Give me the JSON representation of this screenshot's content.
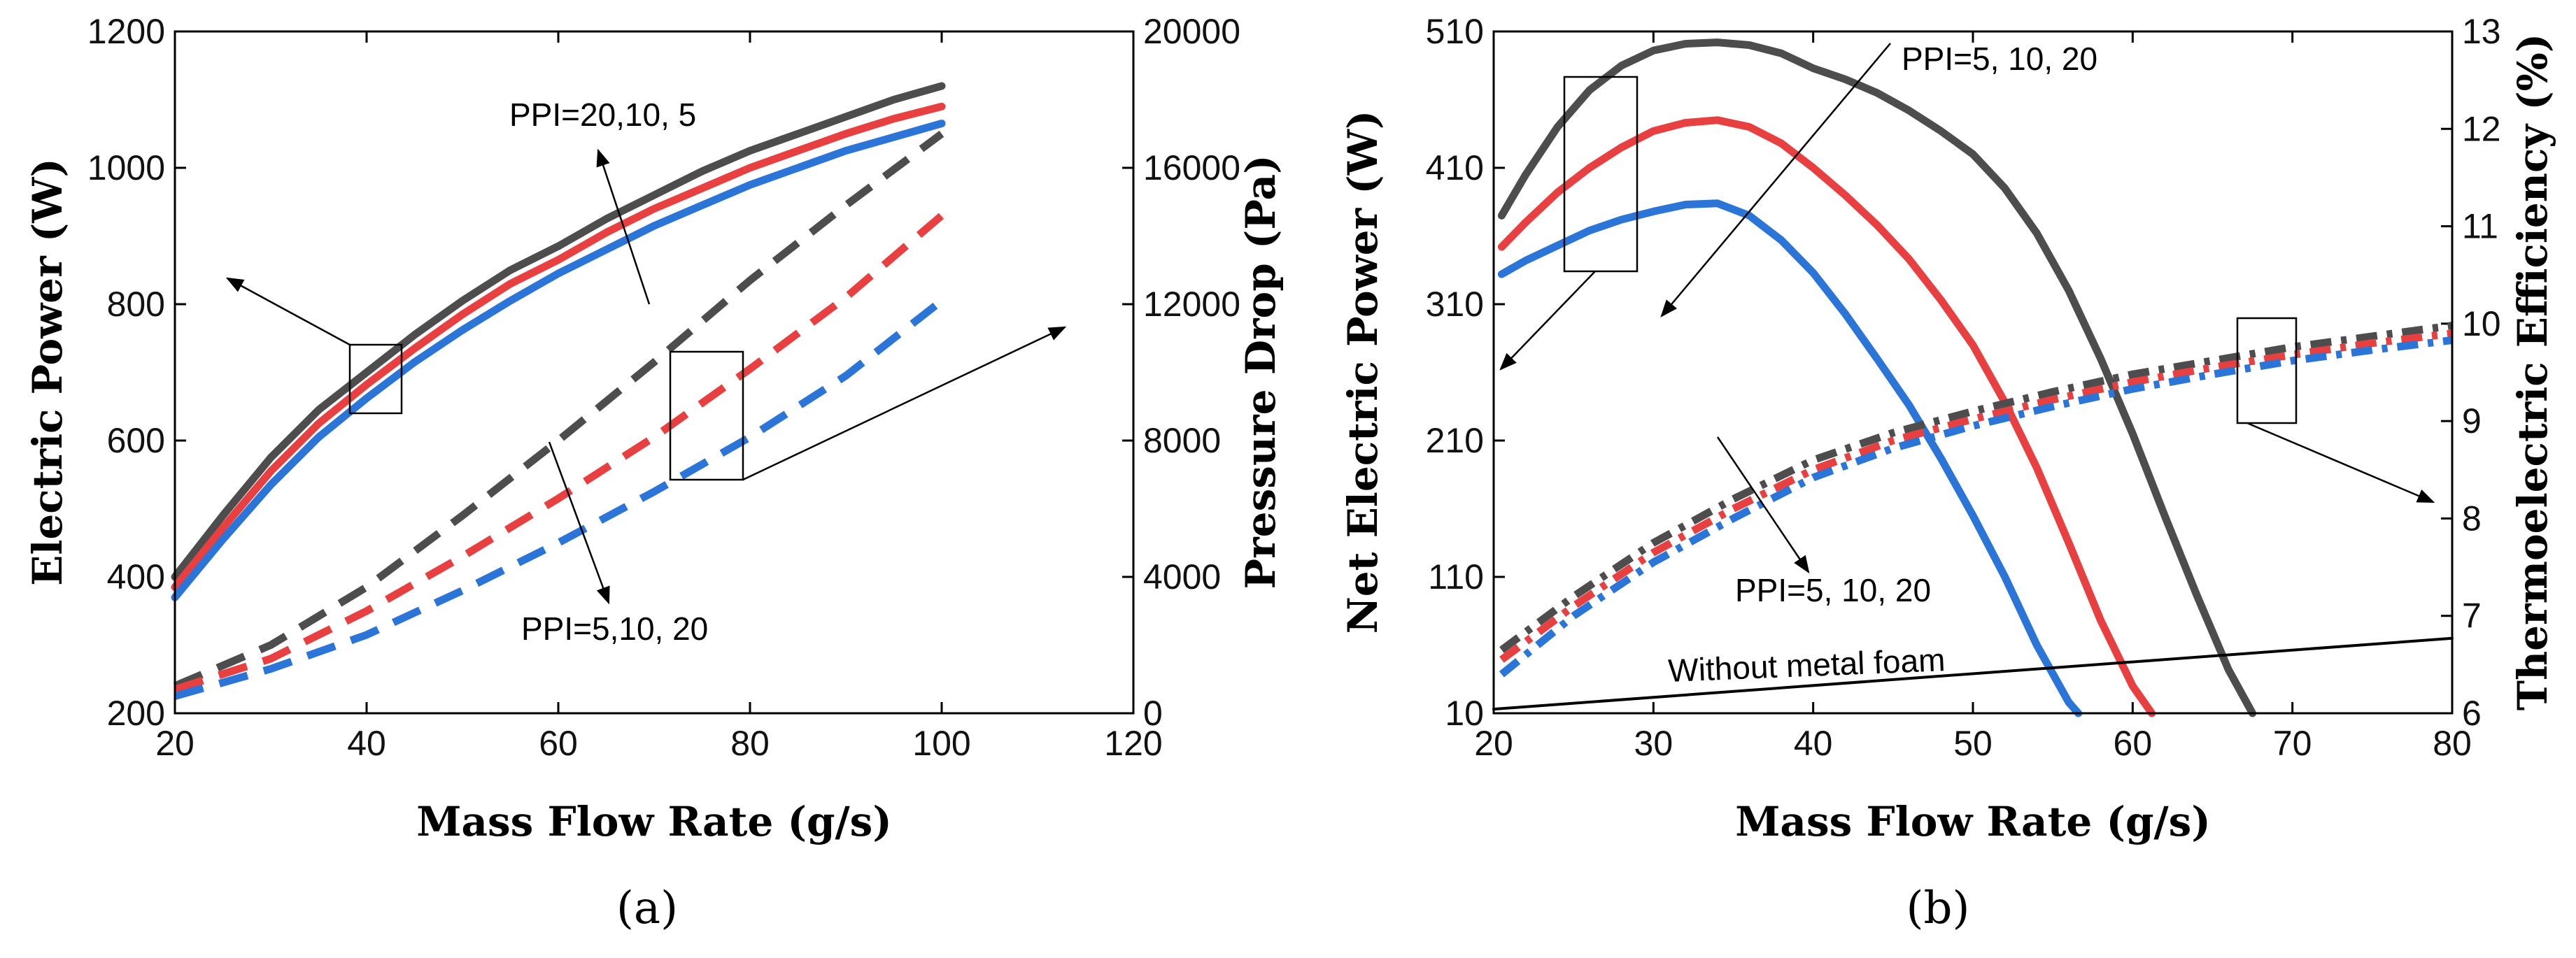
{
  "chart_data": [
    {
      "type": "line",
      "panel_label": "(a)",
      "xlabel": "Mass Flow Rate (g/s)",
      "ylabel": "Electric Power (W)",
      "y2label": "Pressure Drop (Pa)",
      "xlim": [
        20,
        120
      ],
      "ylim": [
        200,
        1200
      ],
      "y2lim": [
        0,
        20000
      ],
      "x_ticks": [
        "20",
        "40",
        "60",
        "80",
        "100",
        "120"
      ],
      "y_ticks": [
        "200",
        "400",
        "600",
        "800",
        "1000",
        "1200"
      ],
      "y2_ticks": [
        "0",
        "4000",
        "8000",
        "12000",
        "16000",
        "20000"
      ],
      "series": [
        {
          "name": "Electric Power PPI=20",
          "axis": "left",
          "style": "solid",
          "color": "#4d4d4d",
          "x": [
            20,
            25,
            30,
            35,
            40,
            45,
            50,
            55,
            60,
            65,
            70,
            75,
            80,
            85,
            90,
            95,
            100
          ],
          "y": [
            400,
            490,
            575,
            645,
            700,
            755,
            805,
            850,
            885,
            925,
            960,
            995,
            1025,
            1050,
            1075,
            1100,
            1120
          ]
        },
        {
          "name": "Electric Power PPI=10",
          "axis": "left",
          "style": "solid",
          "color": "#e84040",
          "x": [
            20,
            25,
            30,
            35,
            40,
            45,
            50,
            55,
            60,
            65,
            70,
            75,
            80,
            85,
            90,
            95,
            100
          ],
          "y": [
            385,
            472,
            555,
            625,
            682,
            735,
            785,
            830,
            865,
            905,
            940,
            970,
            1000,
            1025,
            1050,
            1072,
            1090
          ]
        },
        {
          "name": "Electric Power PPI=5",
          "axis": "left",
          "style": "solid",
          "color": "#2b75d8",
          "x": [
            20,
            25,
            30,
            35,
            40,
            45,
            50,
            55,
            60,
            65,
            70,
            75,
            80,
            85,
            90,
            95,
            100
          ],
          "y": [
            370,
            455,
            535,
            605,
            662,
            715,
            762,
            805,
            845,
            880,
            915,
            945,
            975,
            1000,
            1025,
            1045,
            1065
          ]
        },
        {
          "name": "Pressure Drop PPI=20",
          "axis": "right",
          "style": "dashed",
          "color": "#4d4d4d",
          "x": [
            20,
            30,
            40,
            50,
            60,
            70,
            80,
            90,
            100
          ],
          "y": [
            800,
            2000,
            3700,
            5800,
            8000,
            10300,
            12700,
            14900,
            17000
          ]
        },
        {
          "name": "Pressure Drop PPI=10",
          "axis": "right",
          "style": "dashed",
          "color": "#e84040",
          "x": [
            20,
            30,
            40,
            50,
            60,
            70,
            80,
            90,
            100
          ],
          "y": [
            700,
            1600,
            3000,
            4600,
            6300,
            8100,
            10100,
            12200,
            14600
          ]
        },
        {
          "name": "Pressure Drop PPI=5",
          "axis": "right",
          "style": "dashed",
          "color": "#2b75d8",
          "x": [
            20,
            30,
            40,
            50,
            60,
            70,
            80,
            90,
            100
          ],
          "y": [
            500,
            1300,
            2300,
            3600,
            5000,
            6500,
            8100,
            9900,
            12100
          ]
        }
      ],
      "annotations": [
        "PPI=20,10, 5",
        "PPI=5,10, 20"
      ]
    },
    {
      "type": "line",
      "panel_label": "(b)",
      "xlabel": "Mass Flow Rate (g/s)",
      "ylabel": "Net Electric Power (W)",
      "y2label": "Thermoelectric Efficiency (%)",
      "xlim": [
        20,
        80
      ],
      "ylim": [
        10,
        510
      ],
      "y2lim": [
        6,
        13
      ],
      "x_ticks": [
        "20",
        "30",
        "40",
        "50",
        "60",
        "70",
        "80"
      ],
      "y_ticks": [
        "10",
        "110",
        "210",
        "310",
        "410",
        "510"
      ],
      "y2_ticks": [
        "6",
        "7",
        "8",
        "9",
        "10",
        "11",
        "12",
        "13"
      ],
      "series": [
        {
          "name": "Net Power PPI=20",
          "axis": "left",
          "style": "solid",
          "color": "#4d4d4d",
          "x": [
            20.5,
            22,
            24,
            26,
            28,
            30,
            32,
            34,
            36,
            38,
            40,
            42,
            44,
            46,
            48,
            50,
            52,
            54,
            56,
            58,
            60,
            62,
            64,
            66,
            67.5
          ],
          "y": [
            375,
            405,
            440,
            467,
            485,
            496,
            501,
            502,
            500,
            494,
            483,
            475,
            465,
            452,
            437,
            420,
            395,
            362,
            320,
            270,
            215,
            155,
            97,
            42,
            10
          ]
        },
        {
          "name": "Net Power PPI=10",
          "axis": "left",
          "style": "solid",
          "color": "#e84040",
          "x": [
            20.5,
            22,
            24,
            26,
            28,
            30,
            32,
            34,
            36,
            38,
            40,
            42,
            44,
            46,
            48,
            50,
            52,
            54,
            56,
            58,
            60,
            61.2
          ],
          "y": [
            352,
            370,
            392,
            410,
            425,
            437,
            443,
            445,
            440,
            428,
            410,
            390,
            368,
            343,
            313,
            280,
            238,
            190,
            135,
            78,
            30,
            10
          ]
        },
        {
          "name": "Net Power PPI=5",
          "axis": "left",
          "style": "solid",
          "color": "#2b75d8",
          "x": [
            20.5,
            22,
            24,
            26,
            28,
            30,
            32,
            34,
            36,
            38,
            40,
            42,
            44,
            46,
            48,
            50,
            52,
            54,
            56,
            56.6
          ],
          "y": [
            332,
            342,
            353,
            364,
            372,
            378,
            383,
            384,
            375,
            357,
            333,
            303,
            270,
            236,
            197,
            155,
            110,
            60,
            18,
            10
          ]
        },
        {
          "name": "Efficiency PPI=20",
          "axis": "right",
          "style": "dashdot",
          "color": "#4d4d4d",
          "x": [
            20.5,
            25,
            30,
            35,
            40,
            45,
            50,
            55,
            60,
            65,
            70,
            75,
            80
          ],
          "y": [
            6.65,
            7.2,
            7.75,
            8.2,
            8.6,
            8.88,
            9.1,
            9.3,
            9.48,
            9.62,
            9.76,
            9.87,
            9.98
          ]
        },
        {
          "name": "Efficiency PPI=10",
          "axis": "right",
          "style": "dashdot",
          "color": "#e84040",
          "x": [
            20.5,
            25,
            30,
            35,
            40,
            45,
            50,
            55,
            60,
            65,
            70,
            75,
            80
          ],
          "y": [
            6.55,
            7.1,
            7.65,
            8.1,
            8.5,
            8.8,
            9.02,
            9.22,
            9.4,
            9.55,
            9.68,
            9.8,
            9.9
          ]
        },
        {
          "name": "Efficiency PPI=5",
          "axis": "right",
          "style": "dashdot",
          "color": "#2b75d8",
          "x": [
            20.5,
            25,
            30,
            35,
            40,
            45,
            50,
            55,
            60,
            65,
            70,
            75,
            80
          ],
          "y": [
            6.4,
            7.0,
            7.55,
            8.0,
            8.42,
            8.72,
            8.95,
            9.15,
            9.33,
            9.48,
            9.62,
            9.73,
            9.83
          ]
        },
        {
          "name": "Without metal foam",
          "axis": "left",
          "style": "solid",
          "color": "#000000",
          "x": [
            20,
            80
          ],
          "y": [
            13,
            65
          ]
        }
      ],
      "annotations": [
        "PPI=5, 10, 20",
        "PPI=5, 10, 20",
        "Without metal foam"
      ]
    }
  ]
}
